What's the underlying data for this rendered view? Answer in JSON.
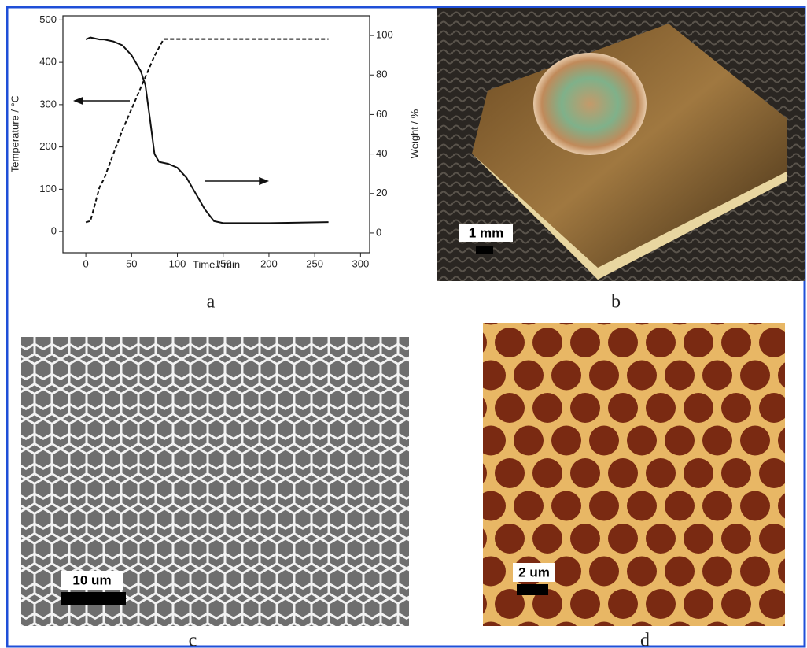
{
  "chart_data": {
    "type": "line",
    "x_label": "Time / min",
    "y_label": "Temperature / °C",
    "y2_label": "Weight / %",
    "x": [
      0,
      5,
      10,
      15,
      20,
      30,
      40,
      50,
      60,
      65,
      70,
      75,
      80,
      85,
      90,
      100,
      110,
      120,
      130,
      140,
      150,
      200,
      265
    ],
    "series": [
      {
        "color": "#111111",
        "style": "dashed",
        "axis": "y",
        "values": [
          22,
          25,
          65,
          105,
          125,
          183,
          240,
          290,
          340,
          365,
          390,
          415,
          435,
          455,
          455,
          455,
          455,
          455,
          455,
          455,
          455,
          455,
          455
        ]
      },
      {
        "color": "#111111",
        "style": "solid",
        "axis": "y2",
        "values": [
          98,
          99,
          98.5,
          98,
          98,
          97,
          95,
          90,
          82,
          75,
          58,
          40,
          36,
          35.5,
          35,
          33,
          28,
          20,
          12,
          6,
          5,
          5,
          5.5
        ]
      }
    ],
    "xlim": [
      -25,
      310
    ],
    "xticks": [
      0,
      50,
      100,
      150,
      200,
      250,
      300
    ],
    "ylim": [
      -50,
      510
    ],
    "yticks": [
      0,
      100,
      200,
      300,
      400,
      500
    ],
    "y2lim": [
      -10,
      110
    ],
    "y2ticks": [
      0,
      20,
      40,
      60,
      80,
      100
    ]
  },
  "panel_labels": [
    "a",
    "b",
    "c",
    "d"
  ],
  "scale_bars": [
    "1 mm",
    "10 um",
    "2 um"
  ]
}
